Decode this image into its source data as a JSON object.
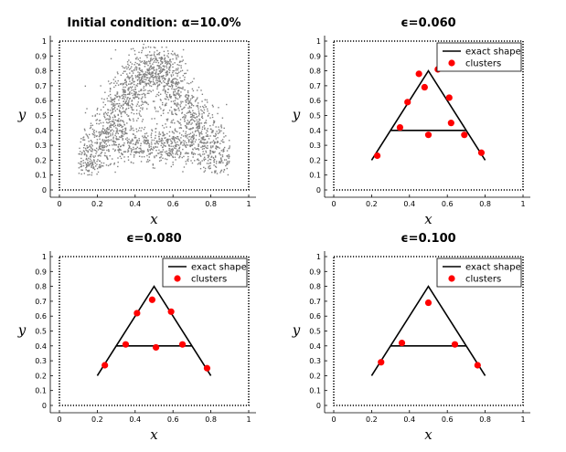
{
  "chart_data": [
    {
      "type": "scatter",
      "title": "Initial condition: α=10.0%",
      "xlabel": "x",
      "ylabel": "y",
      "xlim": [
        0,
        1
      ],
      "ylim": [
        0,
        1
      ],
      "xticks": [
        "0",
        "0.2",
        "0.4",
        "0.6",
        "0.8",
        "1"
      ],
      "yticks": [
        "0",
        "0.1",
        "0.2",
        "0.3",
        "0.4",
        "0.5",
        "0.6",
        "0.7",
        "0.8",
        "0.9",
        "1"
      ],
      "point_color": "#808080",
      "approx_region": {
        "triangle_vertices": [
          [
            0.12,
            0.12
          ],
          [
            0.5,
            0.9
          ],
          [
            0.88,
            0.12
          ]
        ],
        "crossbar_y": 0.3,
        "crossbar_x_range": [
          0.31,
          0.69
        ],
        "noise": 0.06,
        "n_points": 2400
      },
      "grid": false,
      "box": "dotted"
    },
    {
      "type": "scatter",
      "title": "ϵ=0.060",
      "xlabel": "x",
      "ylabel": "y",
      "xlim": [
        0,
        1
      ],
      "ylim": [
        0,
        1
      ],
      "xticks": [
        "0",
        "0.2",
        "0.4",
        "0.6",
        "0.8",
        "1"
      ],
      "yticks": [
        "0",
        "0.1",
        "0.2",
        "0.3",
        "0.4",
        "0.5",
        "0.6",
        "0.7",
        "0.8",
        "0.9",
        "1"
      ],
      "legend": {
        "placement": "top-right",
        "entries": [
          "exact shape",
          "clusters"
        ]
      },
      "series": [
        {
          "name": "exact shape",
          "kind": "line",
          "color": "#000000",
          "segments": [
            [
              [
                0.2,
                0.2
              ],
              [
                0.5,
                0.8
              ],
              [
                0.8,
                0.2
              ]
            ],
            [
              [
                0.3,
                0.4
              ],
              [
                0.7,
                0.4
              ]
            ]
          ]
        },
        {
          "name": "clusters",
          "kind": "points",
          "color": "#ff0000",
          "x": [
            0.23,
            0.35,
            0.39,
            0.45,
            0.48,
            0.5,
            0.55,
            0.61,
            0.62,
            0.69,
            0.78
          ],
          "y": [
            0.23,
            0.42,
            0.59,
            0.78,
            0.69,
            0.37,
            0.81,
            0.62,
            0.45,
            0.37,
            0.25
          ]
        }
      ],
      "grid": false,
      "box": "dotted"
    },
    {
      "type": "scatter",
      "title": "ϵ=0.080",
      "xlabel": "x",
      "ylabel": "y",
      "xlim": [
        0,
        1
      ],
      "ylim": [
        0,
        1
      ],
      "xticks": [
        "0",
        "0.2",
        "0.4",
        "0.6",
        "0.8",
        "1"
      ],
      "yticks": [
        "0",
        "0.1",
        "0.2",
        "0.3",
        "0.4",
        "0.5",
        "0.6",
        "0.7",
        "0.8",
        "0.9",
        "1"
      ],
      "legend": {
        "placement": "top-right",
        "entries": [
          "exact shape",
          "clusters"
        ]
      },
      "series": [
        {
          "name": "exact shape",
          "kind": "line",
          "color": "#000000",
          "segments": [
            [
              [
                0.2,
                0.2
              ],
              [
                0.5,
                0.8
              ],
              [
                0.8,
                0.2
              ]
            ],
            [
              [
                0.3,
                0.4
              ],
              [
                0.7,
                0.4
              ]
            ]
          ]
        },
        {
          "name": "clusters",
          "kind": "points",
          "color": "#ff0000",
          "x": [
            0.24,
            0.35,
            0.41,
            0.49,
            0.51,
            0.59,
            0.65,
            0.78
          ],
          "y": [
            0.27,
            0.41,
            0.62,
            0.71,
            0.39,
            0.63,
            0.41,
            0.25
          ]
        }
      ],
      "grid": false,
      "box": "dotted"
    },
    {
      "type": "scatter",
      "title": "ϵ=0.100",
      "xlabel": "x",
      "ylabel": "y",
      "xlim": [
        0,
        1
      ],
      "ylim": [
        0,
        1
      ],
      "xticks": [
        "0",
        "0.2",
        "0.4",
        "0.6",
        "0.8",
        "1"
      ],
      "yticks": [
        "0",
        "0.1",
        "0.2",
        "0.3",
        "0.4",
        "0.5",
        "0.6",
        "0.7",
        "0.8",
        "0.9",
        "1"
      ],
      "legend": {
        "placement": "top-right",
        "entries": [
          "exact shape",
          "clusters"
        ]
      },
      "series": [
        {
          "name": "exact shape",
          "kind": "line",
          "color": "#000000",
          "segments": [
            [
              [
                0.2,
                0.2
              ],
              [
                0.5,
                0.8
              ],
              [
                0.8,
                0.2
              ]
            ],
            [
              [
                0.3,
                0.4
              ],
              [
                0.7,
                0.4
              ]
            ]
          ]
        },
        {
          "name": "clusters",
          "kind": "points",
          "color": "#ff0000",
          "x": [
            0.25,
            0.36,
            0.5,
            0.64,
            0.76
          ],
          "y": [
            0.29,
            0.42,
            0.69,
            0.41,
            0.27
          ]
        }
      ],
      "grid": false,
      "box": "dotted"
    }
  ]
}
